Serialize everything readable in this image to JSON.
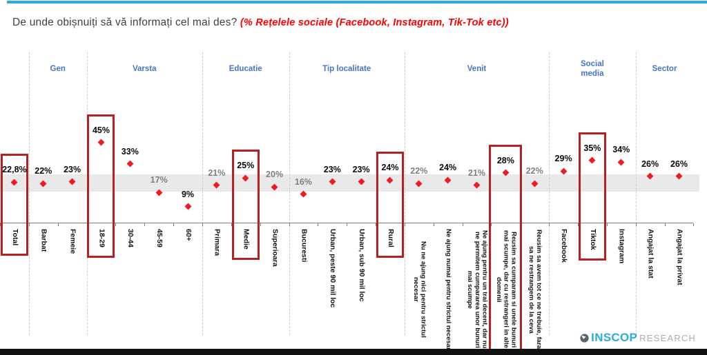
{
  "title": {
    "main": "De unde obișnuiți să vă informați cel mai des? ",
    "highlight": "(% Rețelele sociale (Facebook, Instagram, Tik-Tok etc))"
  },
  "logo": {
    "name": "INSCOP",
    "suffix": "RESEARCH"
  },
  "colors": {
    "topbar_cyan": "#29ABE2",
    "header_blue": "#4576C5",
    "marker_red": "#ED1C24",
    "highlight_box_red": "#B8201F",
    "band_gray": "#E9E9E9",
    "subtitle_red": "#FF0000",
    "muted_label_gray": "#7F7F7F",
    "logo_blue": "#29ABE2",
    "logo_gray": "#ABABAB"
  },
  "chart_data": {
    "type": "scatter",
    "unit": "%",
    "title": "De unde obișnuiți să vă informați cel mai des? (% Rețelele sociale (Facebook, Instagram, Tik-Tok etc))",
    "total_value": 22.8,
    "average_band": {
      "low": 17.5,
      "high": 27
    },
    "axis_min": 0,
    "groups": [
      {
        "label": "",
        "points": [
          {
            "category": "Total",
            "value": 22.8,
            "display": "22,8%",
            "boxed": true
          }
        ]
      },
      {
        "label": "Gen",
        "points": [
          {
            "category": "Barbat",
            "value": 22,
            "display": "22%"
          },
          {
            "category": "Femeie",
            "value": 23,
            "display": "23%"
          }
        ]
      },
      {
        "label": "Varsta",
        "points": [
          {
            "category": "18-29",
            "value": 45,
            "display": "45%",
            "boxed": true
          },
          {
            "category": "30-44",
            "value": 33,
            "display": "33%"
          },
          {
            "category": "45-59",
            "value": 17,
            "display": "17%",
            "muted": true
          },
          {
            "category": "60+",
            "value": 9,
            "display": "9%"
          }
        ]
      },
      {
        "label": "Educatie",
        "points": [
          {
            "category": "Primara",
            "value": 21,
            "display": "21%",
            "muted": true
          },
          {
            "category": "Medie",
            "value": 25,
            "display": "25%",
            "boxed": true
          },
          {
            "category": "Superioara",
            "value": 20,
            "display": "20%",
            "muted": true
          }
        ]
      },
      {
        "label": "Tip localitate",
        "points": [
          {
            "category": "Bucuresti",
            "value": 16,
            "display": "16%",
            "muted": true
          },
          {
            "category": "Urban, peste 90 mil loc",
            "value": 23,
            "display": "23%"
          },
          {
            "category": "Urban, sub 90 mil loc",
            "value": 23,
            "display": "23%"
          },
          {
            "category": "Rural",
            "value": 24,
            "display": "24%",
            "boxed": true
          }
        ]
      },
      {
        "label": "Venit",
        "points": [
          {
            "category": "Nu ne ajung nici pentru strictul necesar",
            "value": 22,
            "display": "22%",
            "muted": true
          },
          {
            "category": "Ne ajung numai pentru strictul necesar",
            "value": 24,
            "display": "24%"
          },
          {
            "category": "Ne ajung pentru un trai decent, dar nu ne permitem cumpararea unor bunuri mai scumpe",
            "value": 21,
            "display": "21%",
            "muted": true
          },
          {
            "category": "Reusim sa cumparam si unele bunuri mai scumpe, dar cu restrangeri in alte domenii",
            "value": 28,
            "display": "28%",
            "boxed": true
          },
          {
            "category": "Reusim sa avem tot ce ne trebuie, fara sa ne restrangem de la ceva",
            "value": 22,
            "display": "22%",
            "muted": true
          }
        ]
      },
      {
        "label": "Social media",
        "header_wrap": true,
        "points": [
          {
            "category": "Facebook",
            "value": 29,
            "display": "29%"
          },
          {
            "category": "Tiktok",
            "value": 35,
            "display": "35%",
            "boxed": true
          },
          {
            "category": "Instagram",
            "value": 34,
            "display": "34%"
          }
        ]
      },
      {
        "label": "Sector",
        "points": [
          {
            "category": "Angajat la stat",
            "value": 26,
            "display": "26%"
          },
          {
            "category": "Angajat la privat",
            "value": 26,
            "display": "26%"
          }
        ]
      }
    ]
  }
}
